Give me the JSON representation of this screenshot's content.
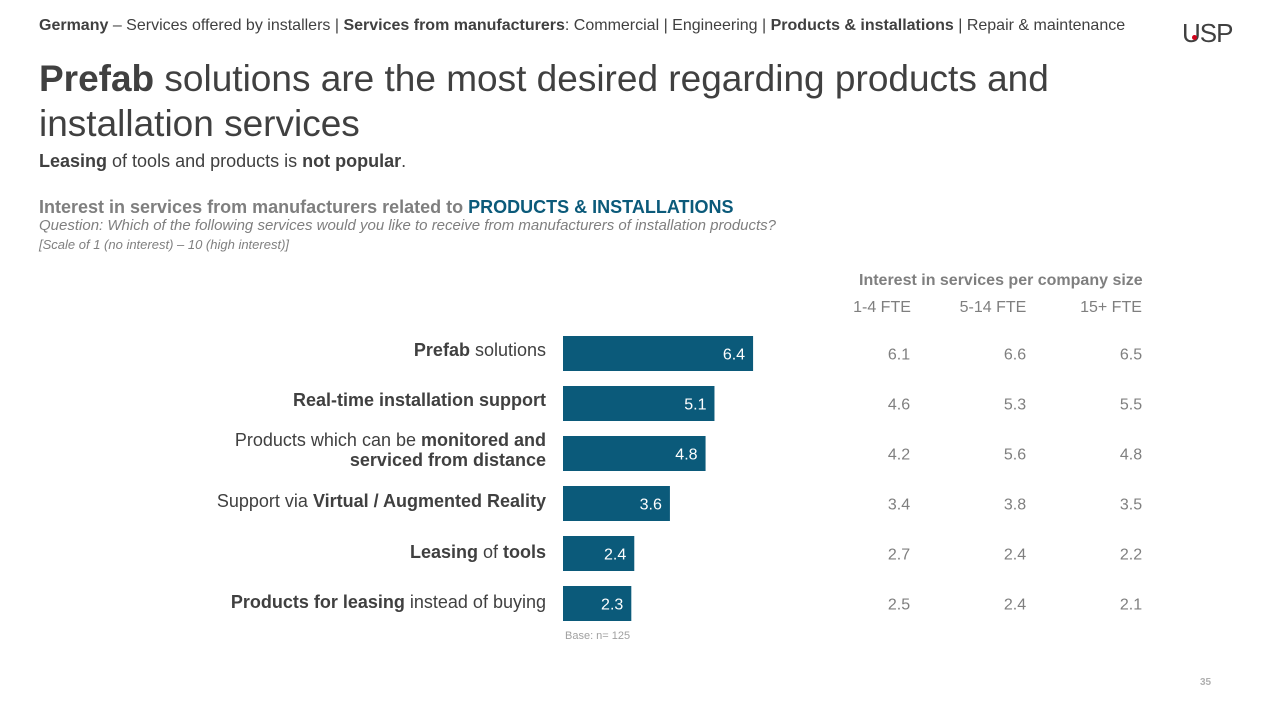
{
  "header": {
    "breadcrumb_country": "Germany",
    "breadcrumb_sep1": " – Services offered by installers | ",
    "breadcrumb_section": "Services from manufacturers",
    "breadcrumb_sep2": ": Commercial | Engineering | ",
    "breadcrumb_active": "Products & installations",
    "breadcrumb_sep3": " | Repair & maintenance",
    "logo_text_a": "US",
    "logo_text_b": "P"
  },
  "title": {
    "bold": "Prefab",
    "rest": " solutions are the most desired regarding products and installation services"
  },
  "subtitle": {
    "bold1": "Leasing",
    "mid": " of tools and products is ",
    "bold2": "not popular",
    "end": "."
  },
  "section": {
    "heading": "Interest in services from manufacturers related to ",
    "heading_accent": "PRODUCTS & INSTALLATIONS",
    "question": "Question: Which of the following services would you like to receive from manufacturers of installation products?",
    "scale": "[Scale of 1 (no interest) – 10 (high interest)]"
  },
  "size_table": {
    "header": "Interest in services per company size",
    "columns": [
      "1-4 FTE",
      "5-14 FTE",
      "15+ FTE"
    ]
  },
  "labels": [
    {
      "a": "",
      "b": "Prefab",
      "c": " solutions",
      "d": "",
      "e": ""
    },
    {
      "a": "",
      "b": "Real-time installation support",
      "c": "",
      "d": "",
      "e": ""
    },
    {
      "a": "Products which can be ",
      "b": "monitored and",
      "c": "",
      "d": "serviced from distance",
      "e": ""
    },
    {
      "a": "Support via ",
      "b": "Virtual / Augmented Reality",
      "c": "",
      "d": "",
      "e": ""
    },
    {
      "a": "",
      "b": "Leasing",
      "c": " of ",
      "d": "",
      "e": "tools"
    },
    {
      "a": "",
      "b": "Products for leasing",
      "c": " instead of buying",
      "d": "",
      "e": ""
    }
  ],
  "chart_data": {
    "type": "bar",
    "orientation": "horizontal",
    "categories": [
      "Prefab solutions",
      "Real-time installation support",
      "Products which can be monitored and serviced from distance",
      "Support via Virtual / Augmented Reality",
      "Leasing of tools",
      "Products for leasing instead of buying"
    ],
    "values": [
      6.4,
      5.1,
      4.8,
      3.6,
      2.4,
      2.3
    ],
    "value_labels": [
      "6.4",
      "5.1",
      "4.8",
      "3.6",
      "2.4",
      "2.3"
    ],
    "bar_color": "#0b5a7a",
    "segments": [
      {
        "name": "1-4 FTE",
        "values": [
          6.1,
          4.6,
          4.2,
          3.4,
          2.7,
          2.5
        ],
        "labels": [
          "6.1",
          "4.6",
          "4.2",
          "3.4",
          "2.7",
          "2.5"
        ]
      },
      {
        "name": "5-14 FTE",
        "values": [
          6.6,
          5.3,
          5.6,
          3.8,
          2.4,
          2.4
        ],
        "labels": [
          "6.6",
          "5.3",
          "5.6",
          "3.8",
          "2.4",
          "2.4"
        ]
      },
      {
        "name": "15+ FTE",
        "values": [
          6.5,
          5.5,
          4.8,
          3.5,
          2.2,
          2.1
        ],
        "labels": [
          "6.5",
          "5.5",
          "4.8",
          "3.5",
          "2.2",
          "2.1"
        ]
      }
    ]
  },
  "footer": {
    "base": "Base: n= 125",
    "page_number": "35"
  }
}
